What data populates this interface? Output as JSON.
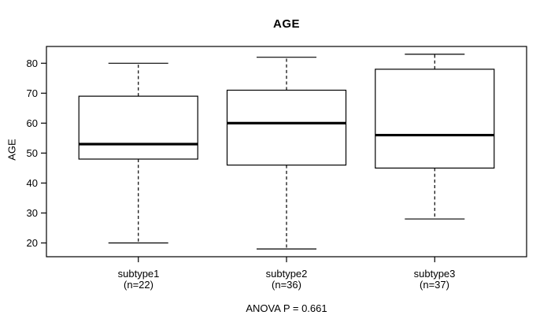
{
  "chart_data": {
    "type": "boxplot",
    "title": "AGE",
    "xlabel": "",
    "ylabel": "AGE",
    "ylim": [
      15.4,
      85.6
    ],
    "yticks": [
      20,
      30,
      40,
      50,
      60,
      70,
      80
    ],
    "grid": false,
    "legend": "none",
    "annotation": "ANOVA P = 0.661",
    "groups": [
      {
        "label": "subtype1",
        "count_label": "(n=22)",
        "n": 22,
        "whisker_low": 20,
        "q1": 48,
        "median": 53,
        "q3": 69,
        "whisker_high": 80
      },
      {
        "label": "subtype2",
        "count_label": "(n=36)",
        "n": 36,
        "whisker_low": 18,
        "q1": 46,
        "median": 60,
        "q3": 71,
        "whisker_high": 82
      },
      {
        "label": "subtype3",
        "count_label": "(n=37)",
        "n": 37,
        "whisker_low": 28,
        "q1": 45,
        "median": 56,
        "q3": 78,
        "whisker_high": 83
      }
    ],
    "colors": {
      "background": "#ffffff",
      "box_fill": "#ffffff",
      "line": "#000000",
      "text": "#000000"
    }
  }
}
